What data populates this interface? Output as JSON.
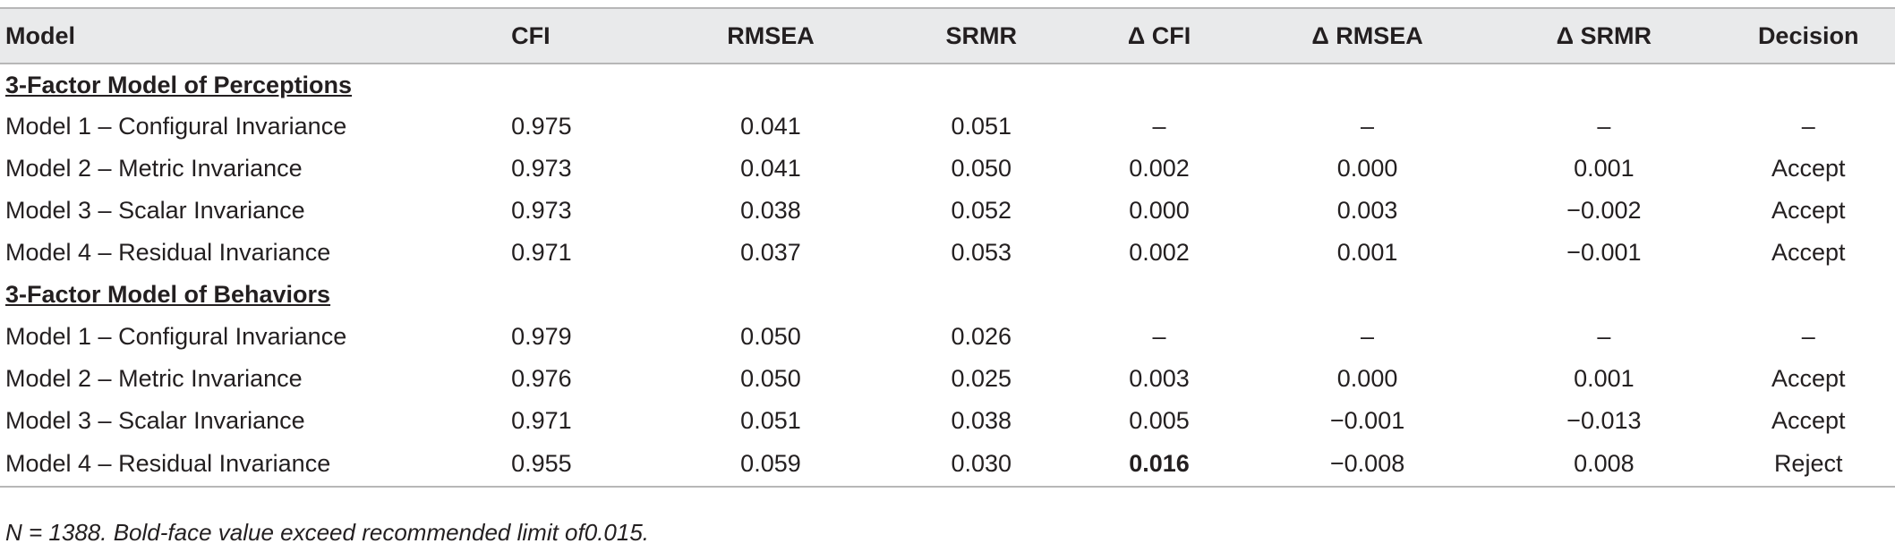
{
  "table": {
    "headers": [
      "Model",
      "CFI",
      "RMSEA",
      "SRMR",
      "Δ CFI",
      "Δ RMSEA",
      "Δ SRMR",
      "Decision"
    ],
    "groups": [
      {
        "title": "3-Factor Model of Perceptions",
        "rows": [
          [
            "Model 1 – Configural Invariance",
            "0.975",
            "0.041",
            "0.051",
            "–",
            "–",
            "–",
            "–"
          ],
          [
            "Model 2 – Metric Invariance",
            "0.973",
            "0.041",
            "0.050",
            "0.002",
            "0.000",
            "0.001",
            "Accept"
          ],
          [
            "Model 3 – Scalar Invariance",
            "0.973",
            "0.038",
            "0.052",
            "0.000",
            "0.003",
            "−0.002",
            "Accept"
          ],
          [
            "Model 4 – Residual Invariance",
            "0.971",
            "0.037",
            "0.053",
            "0.002",
            "0.001",
            "−0.001",
            "Accept"
          ]
        ]
      },
      {
        "title": "3-Factor Model of Behaviors",
        "rows": [
          [
            "Model 1 – Configural Invariance",
            "0.979",
            "0.050",
            "0.026",
            "–",
            "–",
            "–",
            "–"
          ],
          [
            "Model 2 – Metric Invariance",
            "0.976",
            "0.050",
            "0.025",
            "0.003",
            "0.000",
            "0.001",
            "Accept"
          ],
          [
            "Model 3 – Scalar Invariance",
            "0.971",
            "0.051",
            "0.038",
            "0.005",
            "−0.001",
            "−0.013",
            "Accept"
          ],
          [
            "Model 4 – Residual Invariance",
            "0.955",
            "0.059",
            "0.030",
            "0.016",
            "−0.008",
            "0.008",
            "Reject"
          ]
        ]
      }
    ],
    "note": "N = 1388. Bold-face value exceed recommended limit of0.015."
  }
}
